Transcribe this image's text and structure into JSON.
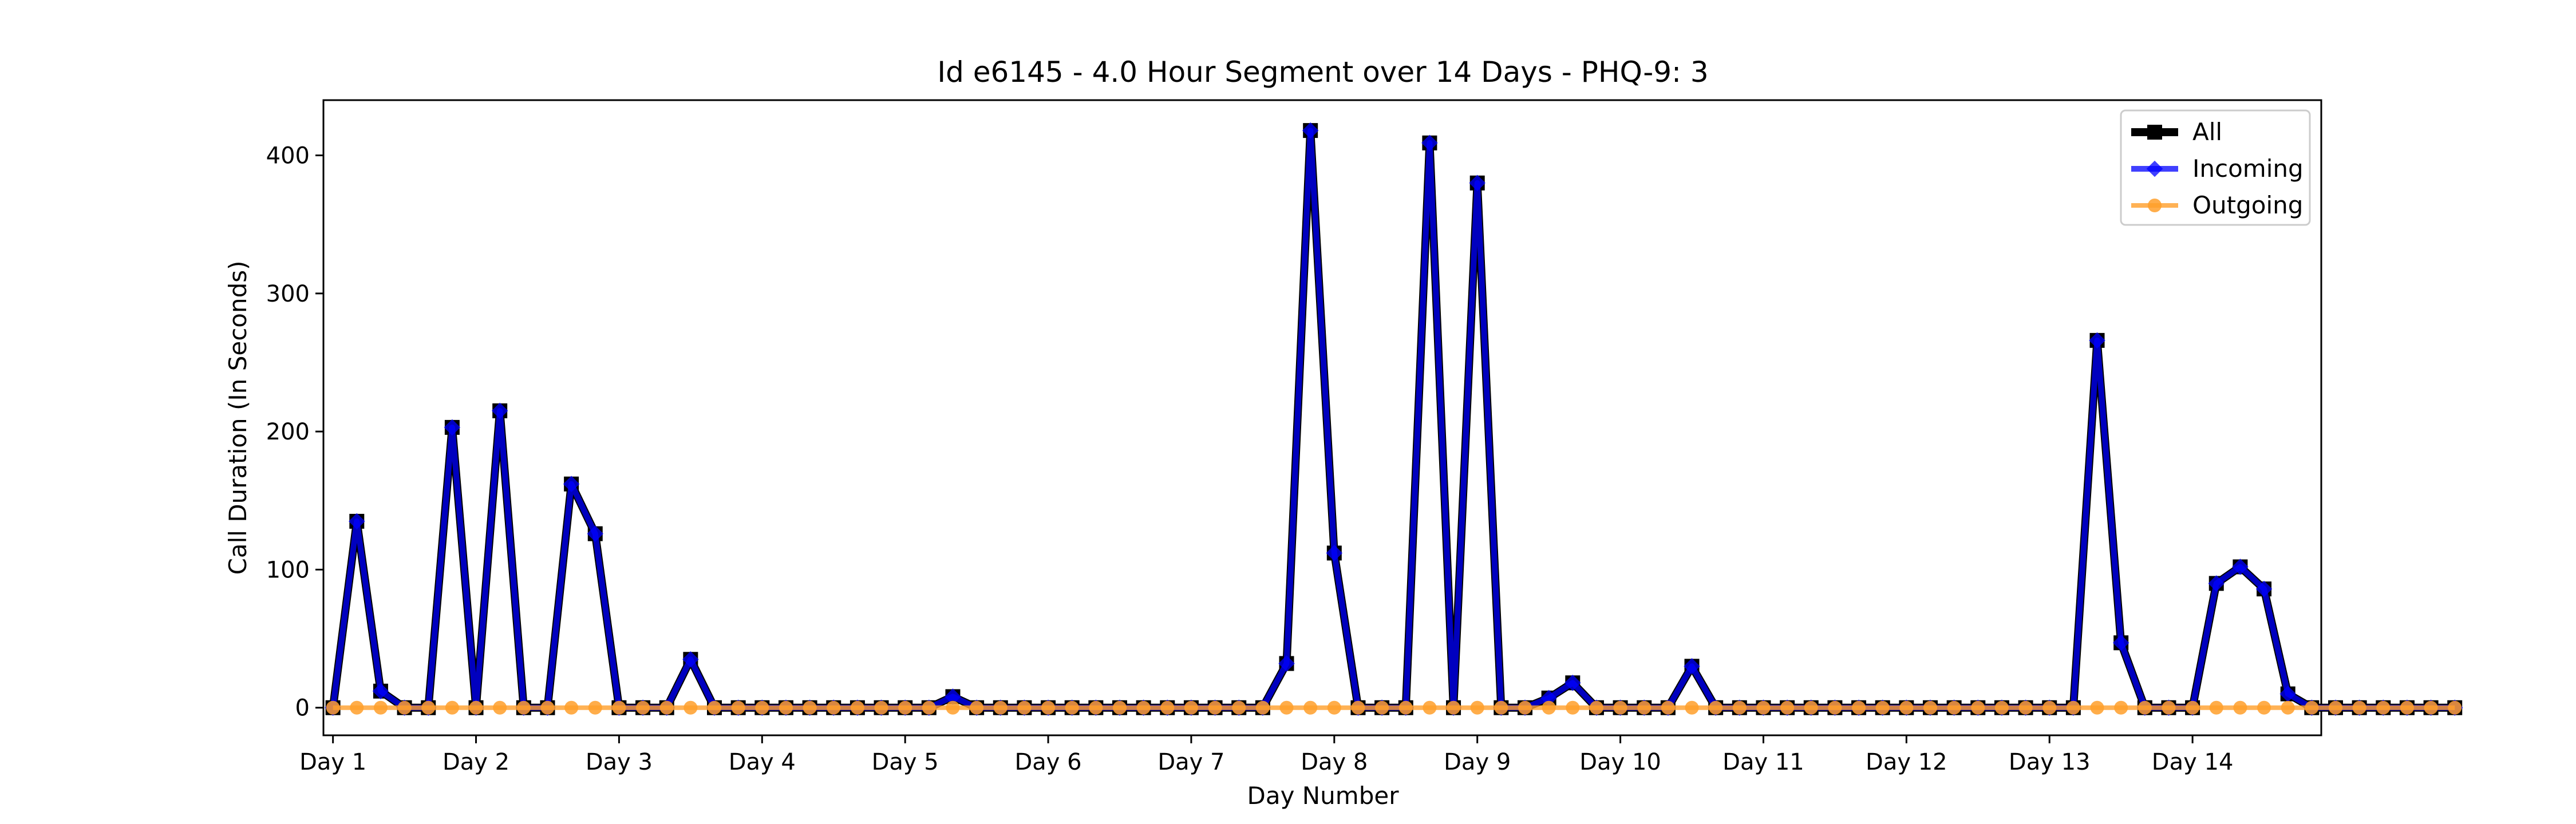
{
  "chart_data": {
    "type": "line",
    "title": "Id e6145 - 4.0 Hour Segment over 14 Days - PHQ-9: 3",
    "xlabel": "Day Number",
    "ylabel": "Call Duration (In Seconds)",
    "xlim": [
      -0.4,
      83.4
    ],
    "ylim": [
      -20,
      440
    ],
    "yticks": [
      0,
      100,
      200,
      300,
      400
    ],
    "xtick_positions": [
      0,
      6,
      12,
      18,
      24,
      30,
      36,
      42,
      48,
      54,
      60,
      66,
      72,
      78
    ],
    "xtick_labels": [
      "Day 1",
      "Day 2",
      "Day 3",
      "Day 4",
      "Day 5",
      "Day 6",
      "Day 7",
      "Day 8",
      "Day 9",
      "Day 10",
      "Day 11",
      "Day 12",
      "Day 13",
      "Day 14"
    ],
    "legend_position": "upper-right",
    "series": [
      {
        "name": "All",
        "color": "#000000",
        "marker": "square",
        "values": [
          0,
          135,
          12,
          0,
          0,
          203,
          0,
          215,
          0,
          0,
          162,
          126,
          0,
          0,
          0,
          35,
          0,
          0,
          0,
          0,
          0,
          0,
          0,
          0,
          0,
          0,
          8,
          0,
          0,
          0,
          0,
          0,
          0,
          0,
          0,
          0,
          0,
          0,
          0,
          0,
          32,
          418,
          112,
          0,
          0,
          0,
          409,
          0,
          380,
          0,
          0,
          7,
          18,
          0,
          0,
          0,
          0,
          30,
          0,
          0,
          0,
          0,
          0,
          0,
          0,
          0,
          0,
          0,
          0,
          0,
          0,
          0,
          0,
          0,
          266,
          47,
          0,
          0,
          0,
          90,
          102,
          86,
          10,
          0,
          0,
          0,
          0,
          0,
          0,
          0
        ]
      },
      {
        "name": "Incoming",
        "color": "#0000ff",
        "marker": "diamond",
        "values": [
          0,
          135,
          12,
          0,
          0,
          203,
          0,
          215,
          0,
          0,
          162,
          126,
          0,
          0,
          0,
          35,
          0,
          0,
          0,
          0,
          0,
          0,
          0,
          0,
          0,
          0,
          8,
          0,
          0,
          0,
          0,
          0,
          0,
          0,
          0,
          0,
          0,
          0,
          0,
          0,
          32,
          418,
          112,
          0,
          0,
          0,
          409,
          0,
          380,
          0,
          0,
          7,
          18,
          0,
          0,
          0,
          0,
          30,
          0,
          0,
          0,
          0,
          0,
          0,
          0,
          0,
          0,
          0,
          0,
          0,
          0,
          0,
          0,
          0,
          266,
          47,
          0,
          0,
          0,
          90,
          102,
          86,
          10,
          0,
          0,
          0,
          0,
          0,
          0,
          0
        ]
      },
      {
        "name": "Outgoing",
        "color": "#ff9f2a",
        "marker": "circle",
        "values": [
          0,
          0,
          0,
          0,
          0,
          0,
          0,
          0,
          0,
          0,
          0,
          0,
          0,
          0,
          0,
          0,
          0,
          0,
          0,
          0,
          0,
          0,
          0,
          0,
          0,
          0,
          0,
          0,
          0,
          0,
          0,
          0,
          0,
          0,
          0,
          0,
          0,
          0,
          0,
          0,
          0,
          0,
          0,
          0,
          0,
          0,
          0,
          0,
          0,
          0,
          0,
          0,
          0,
          0,
          0,
          0,
          0,
          0,
          0,
          0,
          0,
          0,
          0,
          0,
          0,
          0,
          0,
          0,
          0,
          0,
          0,
          0,
          0,
          0,
          0,
          0,
          0,
          0,
          0,
          0,
          0,
          0,
          0,
          0,
          0,
          0,
          0,
          0,
          0,
          0
        ]
      }
    ]
  }
}
